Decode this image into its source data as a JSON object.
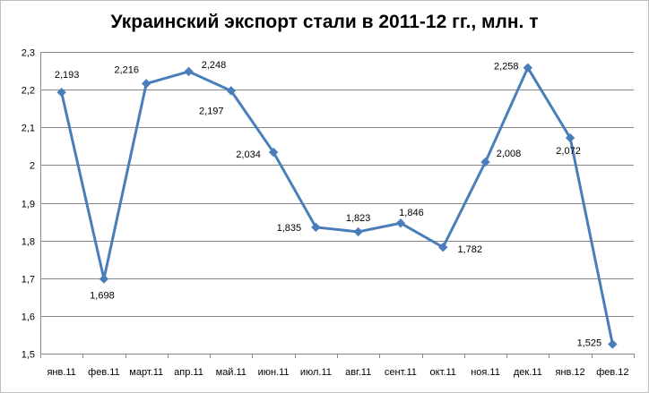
{
  "chart_data": {
    "type": "line",
    "title": "Украинский экспорт стали в 2011-12 гг., млн. т",
    "xlabel": "",
    "ylabel": "",
    "categories": [
      "янв.11",
      "фев.11",
      "март.11",
      "апр.11",
      "май.11",
      "июн.11",
      "июл.11",
      "авг.11",
      "сент.11",
      "окт.11",
      "ноя.11",
      "дек.11",
      "янв.12",
      "фев.12"
    ],
    "series": [
      {
        "values": [
          2.193,
          1.698,
          2.216,
          2.248,
          2.197,
          2.034,
          1.835,
          1.823,
          1.846,
          1.782,
          2.008,
          2.258,
          2.072,
          1.525
        ],
        "data_labels": [
          "2,193",
          "1,698",
          "2,216",
          "2,248",
          "2,197",
          "2,034",
          "1,835",
          "1,823",
          "1,846",
          "1,782",
          "2,008",
          "2,258",
          "2,072",
          "1,525"
        ],
        "color": "#4a7ebb"
      }
    ],
    "ylim": [
      1.5,
      2.3
    ],
    "yticks": [
      1.5,
      1.6,
      1.7,
      1.8,
      1.9,
      2.0,
      2.1,
      2.2,
      2.3
    ],
    "ytick_labels": [
      "1,5",
      "1,6",
      "1,7",
      "1,8",
      "1,9",
      "2",
      "2,1",
      "2,2",
      "2,3"
    ],
    "grid": true,
    "legend": "none",
    "marker": "diamond"
  }
}
